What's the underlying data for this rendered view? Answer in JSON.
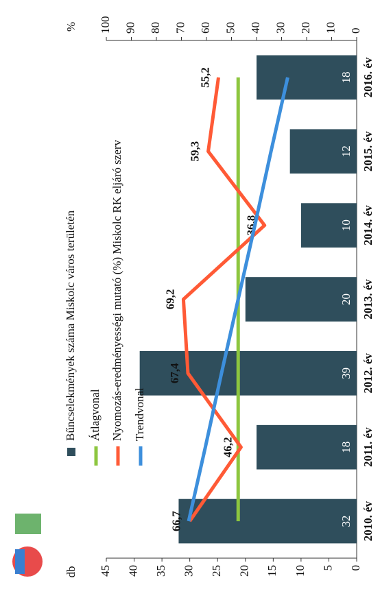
{
  "chart_data": {
    "type": "bar",
    "categories": [
      "2010. év",
      "2011. év",
      "2012. év",
      "2013. év",
      "2014. év",
      "2015. év",
      "2016. év"
    ],
    "ylabel": "db",
    "y2label": "%",
    "ylim": [
      0,
      45
    ],
    "yticks": [
      0,
      5,
      10,
      15,
      20,
      25,
      30,
      35,
      40,
      45
    ],
    "y2lim": [
      0,
      100
    ],
    "y2ticks": [
      0,
      10,
      20,
      30,
      40,
      50,
      60,
      70,
      80,
      90,
      100
    ],
    "series": [
      {
        "name": "Bűncselekmények száma Miskolc város területén",
        "type": "bar",
        "color": "#2f4e5c",
        "values": [
          32,
          18,
          39,
          20,
          10,
          12,
          18
        ]
      },
      {
        "name": "Átlagvonal",
        "type": "line",
        "color": "#8dc63f",
        "values": [
          21.3,
          21.3,
          21.3,
          21.3,
          21.3,
          21.3,
          21.3
        ]
      },
      {
        "name": "Nyomozás-eredményességi mutató (%) Miskolc RK eljáró szerv",
        "type": "line",
        "axis": "y2",
        "color": "#ff5a36",
        "values": [
          66.7,
          46.2,
          67.4,
          69.2,
          36.8,
          59.3,
          55.2
        ],
        "value_labels": [
          "66,7",
          "46,2",
          "67,4",
          "69,2",
          "36,8",
          "59,3",
          "55,2"
        ]
      },
      {
        "name": "Trendvonal",
        "type": "line",
        "color": "#3d8fdc",
        "values": [
          30.2,
          27.2,
          24.3,
          21.3,
          18.3,
          15.4,
          12.4
        ]
      }
    ]
  }
}
